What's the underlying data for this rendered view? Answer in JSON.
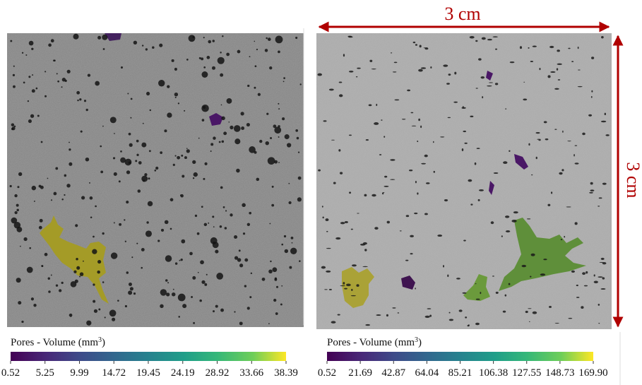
{
  "panels": [
    {
      "colorbar": {
        "title_parts": [
          "Pores - Volume (mm",
          "3",
          ")"
        ],
        "ticks": [
          0.52,
          5.25,
          9.99,
          14.72,
          19.45,
          24.19,
          28.92,
          33.66,
          38.39
        ]
      }
    },
    {
      "colorbar": {
        "title_parts": [
          "Pores - Volume (mm",
          "3",
          ")"
        ],
        "ticks": [
          0.52,
          21.69,
          42.87,
          64.04,
          85.21,
          106.38,
          127.55,
          148.73,
          {
            "value": 169.9,
            "label": "169.90"
          }
        ]
      }
    }
  ],
  "scale": {
    "horizontal_label": "3 cm",
    "vertical_label": "3 cm"
  }
}
